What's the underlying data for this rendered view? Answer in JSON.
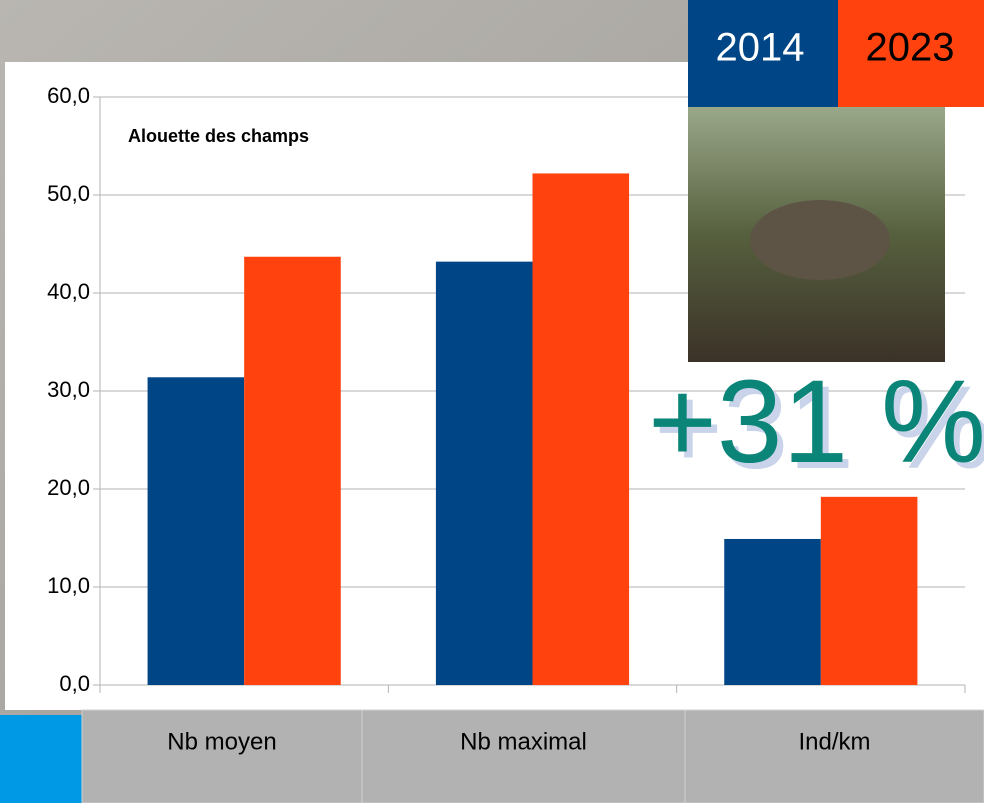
{
  "chart_data": {
    "type": "bar",
    "title": "Alouette des champs",
    "annotation": "+31 %",
    "categories": [
      "Nb moyen",
      "Nb maximal",
      "Ind/km"
    ],
    "series": [
      {
        "name": "2014",
        "color": "#004586",
        "values": [
          31.4,
          43.2,
          14.9
        ]
      },
      {
        "name": "2023",
        "color": "#ff420e",
        "values": [
          43.7,
          52.2,
          19.2
        ]
      }
    ],
    "ylim": [
      0,
      60
    ],
    "yticks": [
      {
        "value": 0,
        "label": "0,0"
      },
      {
        "value": 10,
        "label": "10,0"
      },
      {
        "value": 20,
        "label": "20,0"
      },
      {
        "value": 30,
        "label": "30,0"
      },
      {
        "value": 40,
        "label": "40,0"
      },
      {
        "value": 50,
        "label": "50,0"
      },
      {
        "value": 60,
        "label": "60,0"
      }
    ],
    "grid": true
  }
}
